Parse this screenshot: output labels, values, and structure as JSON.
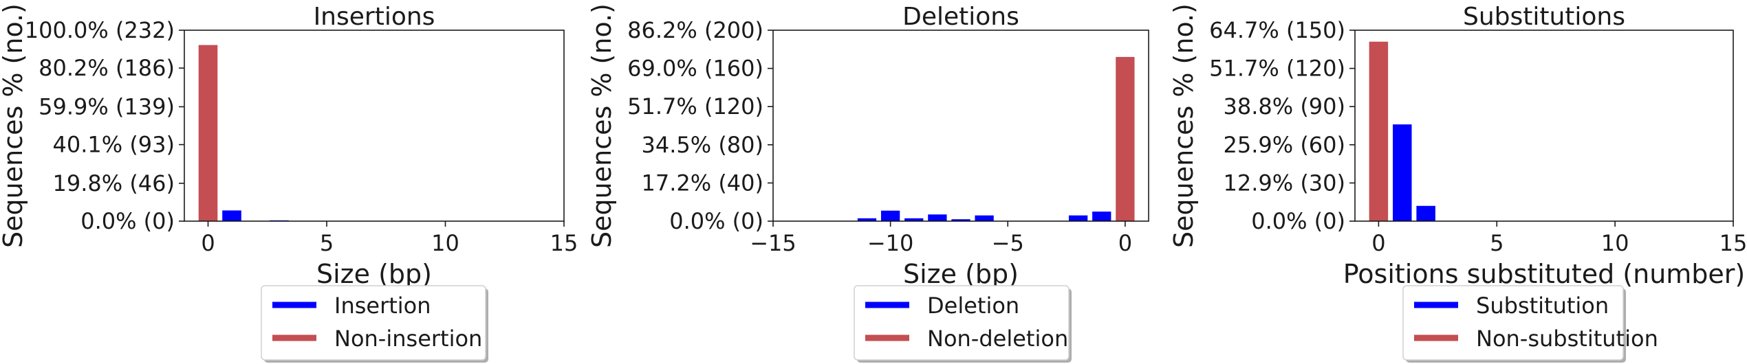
{
  "colors": {
    "blue": "#0000ff",
    "red": "#c44e52",
    "axis": "#1a1a1a"
  },
  "chart_data": [
    {
      "type": "bar",
      "title": "Insertions",
      "xlabel": "Size (bp)",
      "ylabel": "Sequences % (no.)",
      "xlim": [
        -1,
        15
      ],
      "ylim": [
        0,
        232
      ],
      "x_ticks": [
        0,
        5,
        10,
        15
      ],
      "y_ticks": [
        {
          "value": 0,
          "label": "0.0% (0)"
        },
        {
          "value": 46,
          "label": "19.8% (46)"
        },
        {
          "value": 93,
          "label": "40.1% (93)"
        },
        {
          "value": 139,
          "label": "59.9% (139)"
        },
        {
          "value": 186,
          "label": "80.2% (186)"
        },
        {
          "value": 232,
          "label": "100.0% (232)"
        }
      ],
      "series": [
        {
          "name": "Insertion",
          "color": "#0000ff",
          "x": [
            1,
            3
          ],
          "values": [
            13,
            1
          ]
        },
        {
          "name": "Non-insertion",
          "color": "#c44e52",
          "x": [
            0
          ],
          "values": [
            214
          ]
        }
      ],
      "legend": [
        "Insertion",
        "Non-insertion"
      ],
      "legend_position": "below"
    },
    {
      "type": "bar",
      "title": "Deletions",
      "xlabel": "Size (bp)",
      "ylabel": "Sequences % (no.)",
      "xlim": [
        -15,
        1
      ],
      "ylim": [
        0,
        200
      ],
      "x_ticks": [
        {
          "value": -15,
          "label": "−15"
        },
        {
          "value": -10,
          "label": "−10"
        },
        {
          "value": -5,
          "label": "−5"
        },
        {
          "value": 0,
          "label": "0"
        }
      ],
      "y_ticks": [
        {
          "value": 0,
          "label": "0.0% (0)"
        },
        {
          "value": 40,
          "label": "17.2% (40)"
        },
        {
          "value": 80,
          "label": "34.5% (80)"
        },
        {
          "value": 120,
          "label": "51.7% (120)"
        },
        {
          "value": 160,
          "label": "69.0% (160)"
        },
        {
          "value": 200,
          "label": "86.2% (200)"
        }
      ],
      "series": [
        {
          "name": "Deletion",
          "color": "#0000ff",
          "x": [
            -11,
            -10,
            -9,
            -8,
            -7,
            -6,
            -2,
            -1
          ],
          "values": [
            3,
            11,
            3,
            7,
            2,
            6,
            6,
            10
          ]
        },
        {
          "name": "Non-deletion",
          "color": "#c44e52",
          "x": [
            0
          ],
          "values": [
            172
          ]
        }
      ],
      "legend": [
        "Deletion",
        "Non-deletion"
      ],
      "legend_position": "below"
    },
    {
      "type": "bar",
      "title": "Substitutions",
      "xlabel": "Positions substituted (number)",
      "ylabel": "Sequences % (no.)",
      "xlim": [
        -1,
        15
      ],
      "ylim": [
        0,
        150
      ],
      "x_ticks": [
        0,
        5,
        10,
        15
      ],
      "y_ticks": [
        {
          "value": 0,
          "label": "0.0% (0)"
        },
        {
          "value": 30,
          "label": "12.9% (30)"
        },
        {
          "value": 60,
          "label": "25.9% (60)"
        },
        {
          "value": 90,
          "label": "38.8% (90)"
        },
        {
          "value": 120,
          "label": "51.7% (120)"
        },
        {
          "value": 150,
          "label": "64.7% (150)"
        }
      ],
      "series": [
        {
          "name": "Substitution",
          "color": "#0000ff",
          "x": [
            1,
            2
          ],
          "values": [
            76,
            12
          ]
        },
        {
          "name": "Non-substitution",
          "color": "#c44e52",
          "x": [
            0
          ],
          "values": [
            141
          ]
        }
      ],
      "legend": [
        "Substitution",
        "Non-substitution"
      ],
      "legend_position": "below"
    }
  ]
}
